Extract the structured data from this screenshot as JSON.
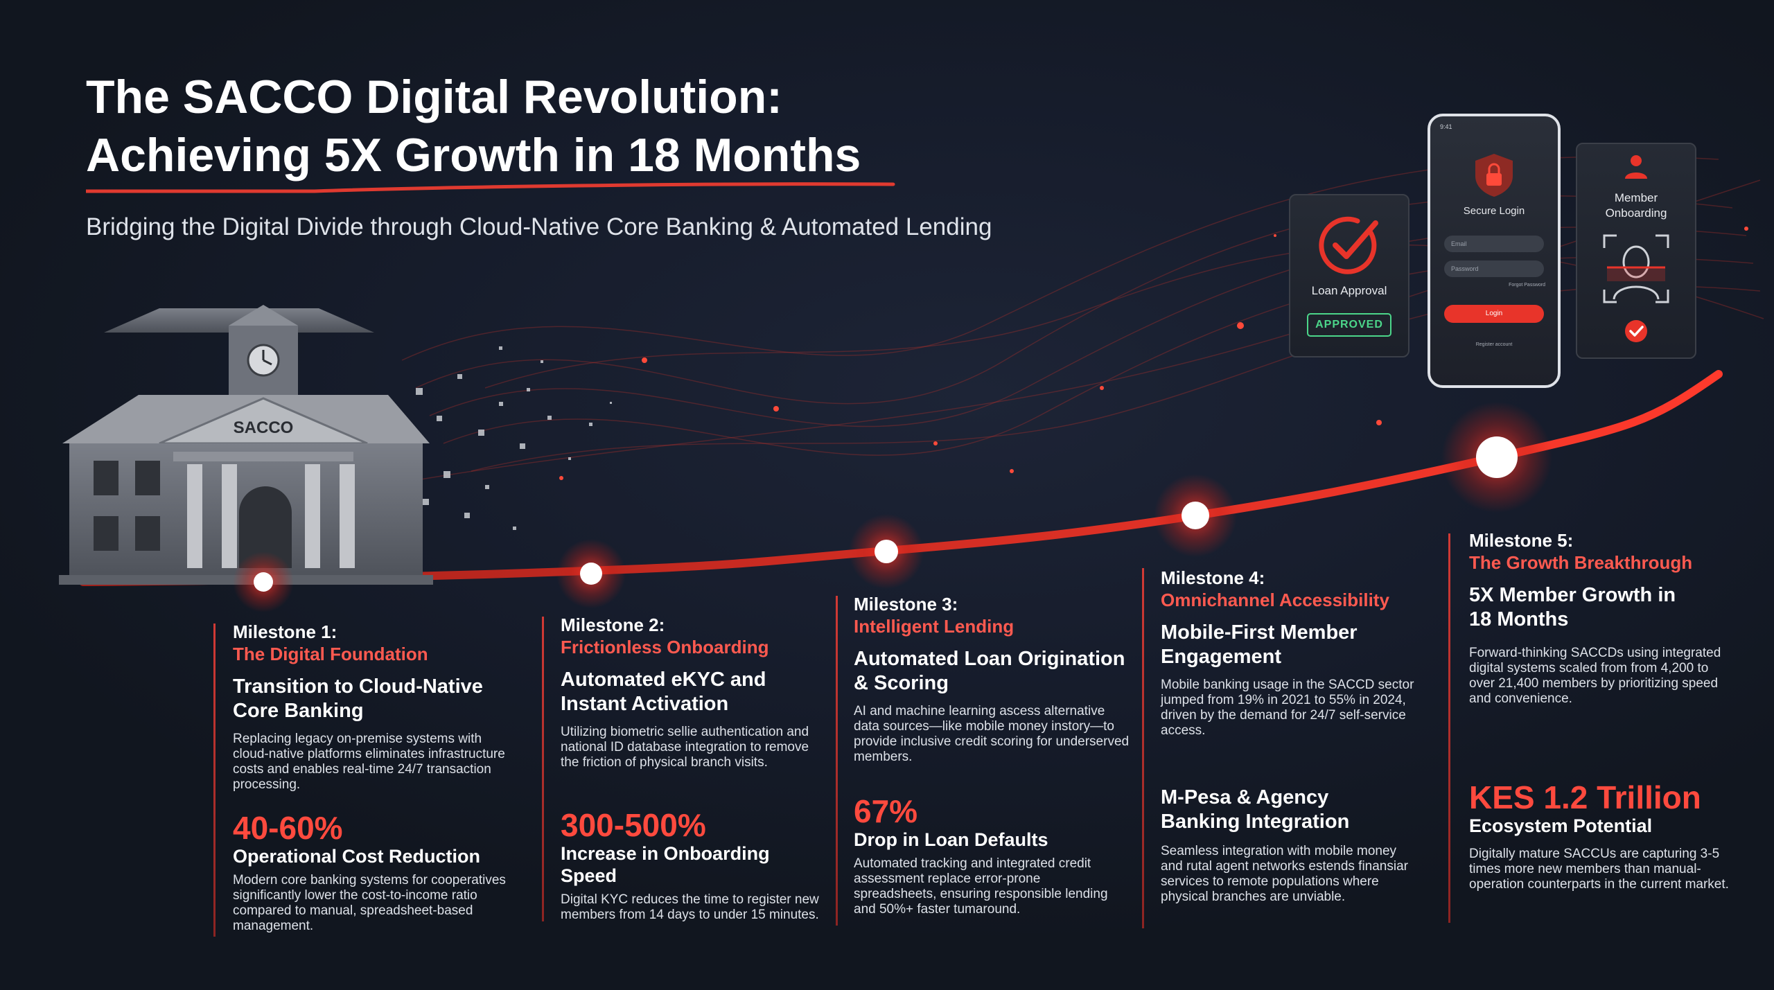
{
  "header": {
    "title_line1": "The SACCO Digital Revolution:",
    "title_line2": "Achieving 5X Growth in 18 Months",
    "subtitle": "Bridging the Digital Divide through Cloud-Native Core Banking & Automated Lending"
  },
  "building": {
    "sign": "SACCO"
  },
  "cards": {
    "loan": {
      "label": "Loan Approval",
      "badge": "APPROVED"
    },
    "phone": {
      "status_time": "9:41",
      "title": "Secure Login",
      "email_placeholder": "Email",
      "password_placeholder": "Password",
      "forgot_link": "Forgot Password",
      "login_button": "Login",
      "register_link": "Register account"
    },
    "onboarding": {
      "label_line1": "Member",
      "label_line2": "Onboarding"
    }
  },
  "milestones": [
    {
      "label": "Milestone 1:",
      "name": "The Digital Foundation",
      "heading": "Transition to Cloud-Native Core Banking",
      "desc": "Replacing legacy on-premise systems with cloud-native platforms eliminates infrastructure costs and enables real-time 24/7 transaction processing.",
      "stat_value": "40-60%",
      "stat_label": "Operational Cost Reduction",
      "stat_desc": "Modern core banking systems for cooperatives significantly lower the cost-to-income ratio compared to manual, spreadsheet-based management."
    },
    {
      "label": "Milestone 2:",
      "name": "Frictionless Onboarding",
      "heading": "Automated eKYC and Instant Activation",
      "desc": "Utilizing biometric sellie authentication and national ID database integration to remove the friction of physical branch visits.",
      "stat_value": "300-500%",
      "stat_label": "Increase in Onboarding Speed",
      "stat_desc": "Digital KYC reduces the time to register new members from 14 days to under 15 minutes."
    },
    {
      "label": "Milestone 3:",
      "name": "Intelligent Lending",
      "heading": "Automated Loan Origination & Scoring",
      "desc": "AI and machine learning ascess alternative data sources—like mobile money instory—to provide inclusive credit scoring for underserved members.",
      "stat_value": "67%",
      "stat_label": "Drop in Loan Defaults",
      "stat_desc": "Automated tracking and integrated credit assessment replace error-prone spreadsheets, ensuring responsible lending and 50%+ faster tumaround."
    },
    {
      "label": "Milestone 4:",
      "name": "Omnichannel Accessibility",
      "heading": "Mobile-First Member Engagement",
      "desc": "Mobile banking usage in the SACCD sector jumped from 19% in 2021 to 55% in 2024, driven by the demand for 24/7 self-service access.",
      "stat_value": "",
      "stat_label": "M-Pesa & Agency Banking Integration",
      "stat_desc": "Seamless integration with mobile money and rutal agent networks estends finansiar services to remote populations where physical branches are unviable."
    },
    {
      "label": "Milestone 5:",
      "name": "The Growth Breakthrough",
      "heading": "5X Member Growth in 18 Months",
      "desc": "Forward-thinking SACCDs using integrated digital systems scaled from from 4,200 to over 21,400 members by prioritizing speed and convenience.",
      "stat_value": "KES 1.2 Trillion",
      "stat_label": "Ecosystem Potential",
      "stat_desc": "Digitally mature SACCUs are capturing 3-5 times more new members than manual-operation counterparts in the current market."
    }
  ],
  "colors": {
    "accent": "#e8342a",
    "accent_light": "#ff5a50",
    "background": "#151b29",
    "approved": "#4cd68a"
  },
  "icons": [
    "clock-icon",
    "checkmark-icon",
    "lock-icon",
    "face-scan-icon",
    "user-icon",
    "check-badge-icon"
  ]
}
